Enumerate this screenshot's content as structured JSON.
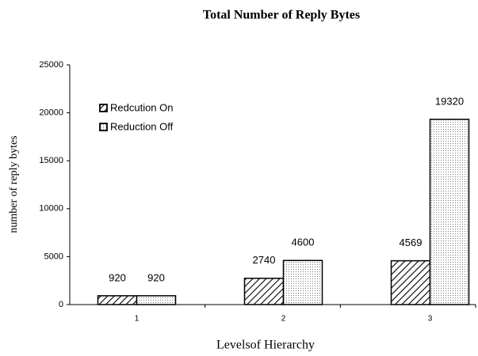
{
  "chart_data": {
    "type": "bar",
    "title": "Total Number of Reply Bytes",
    "x_label": "Levelsof Hierarchy",
    "y_label": "number of reply bytes",
    "categories": [
      "1",
      "2",
      "3"
    ],
    "series": [
      {
        "name": "Redcution On",
        "color": "#000000",
        "pattern": "hatch",
        "values": [
          920,
          2740,
          4569
        ]
      },
      {
        "name": "Reduction Off",
        "color": "#000000",
        "pattern": "dots",
        "values": [
          920,
          4600,
          19320
        ]
      }
    ],
    "ylim": [
      0,
      25000
    ],
    "yticks": [
      0,
      5000,
      10000,
      15000,
      20000,
      25000
    ],
    "grid": false,
    "legend": "upper left"
  }
}
